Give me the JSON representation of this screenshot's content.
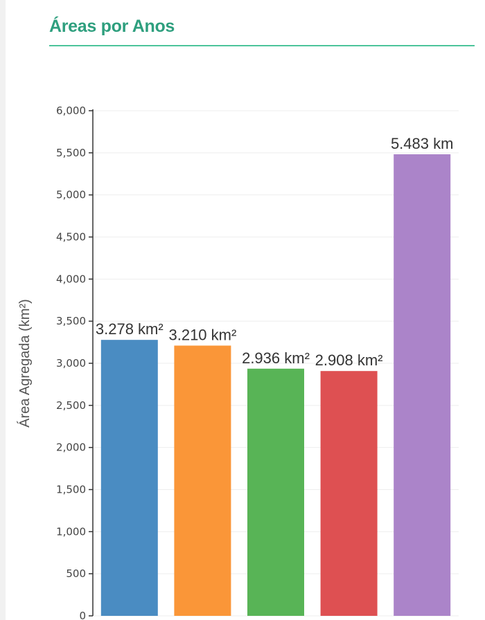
{
  "header": {
    "title": "Áreas por Anos"
  },
  "chart_data": {
    "type": "bar",
    "title": "",
    "xlabel": "",
    "ylabel": "Área Agregada (km²)",
    "ylim": [
      0,
      6000
    ],
    "yticks": [
      0,
      500,
      1000,
      1500,
      2000,
      2500,
      3000,
      3500,
      4000,
      4500,
      5000,
      5500,
      6000
    ],
    "ytick_labels": [
      "0",
      "500",
      "1,000",
      "1,500",
      "2,000",
      "2,500",
      "3,000",
      "3,500",
      "4,000",
      "4,500",
      "5,000",
      "5,500",
      "6,000"
    ],
    "grid": true,
    "values": [
      3278,
      3210,
      2936,
      2908,
      5483
    ],
    "data_labels": [
      "3.278 km²",
      "3.210 km²",
      "2.936 km²",
      "2.908 km²",
      "5.483 km"
    ],
    "colors": [
      "#4a8cc2",
      "#fa9638",
      "#58b456",
      "#de5052",
      "#ab84c9"
    ]
  }
}
